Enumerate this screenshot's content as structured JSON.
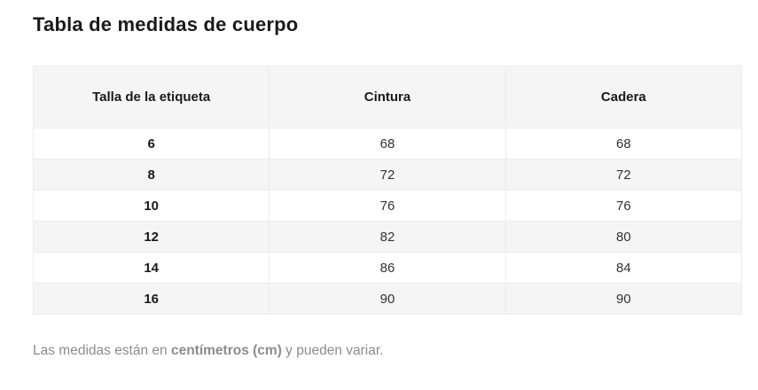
{
  "page": {
    "title": "Tabla de medidas de cuerpo"
  },
  "table": {
    "headers": [
      "Talla de la etiqueta",
      "Cintura",
      "Cadera"
    ],
    "rows": [
      [
        "6",
        "68",
        "68"
      ],
      [
        "8",
        "72",
        "72"
      ],
      [
        "10",
        "76",
        "76"
      ],
      [
        "12",
        "82",
        "80"
      ],
      [
        "14",
        "86",
        "84"
      ],
      [
        "16",
        "90",
        "90"
      ]
    ]
  },
  "footnote": {
    "prefix": "Las medidas están en ",
    "emphasis": "centímetros (cm)",
    "suffix": " y pueden variar."
  },
  "colors": {
    "title_text": "#1a1a1a",
    "header_bg": "#f5f5f5",
    "row_stripe_bg": "#f5f5f5",
    "cell_border": "#ececec",
    "body_text": "#333333",
    "muted_text": "#8c8c8c",
    "page_bg": "#ffffff"
  }
}
